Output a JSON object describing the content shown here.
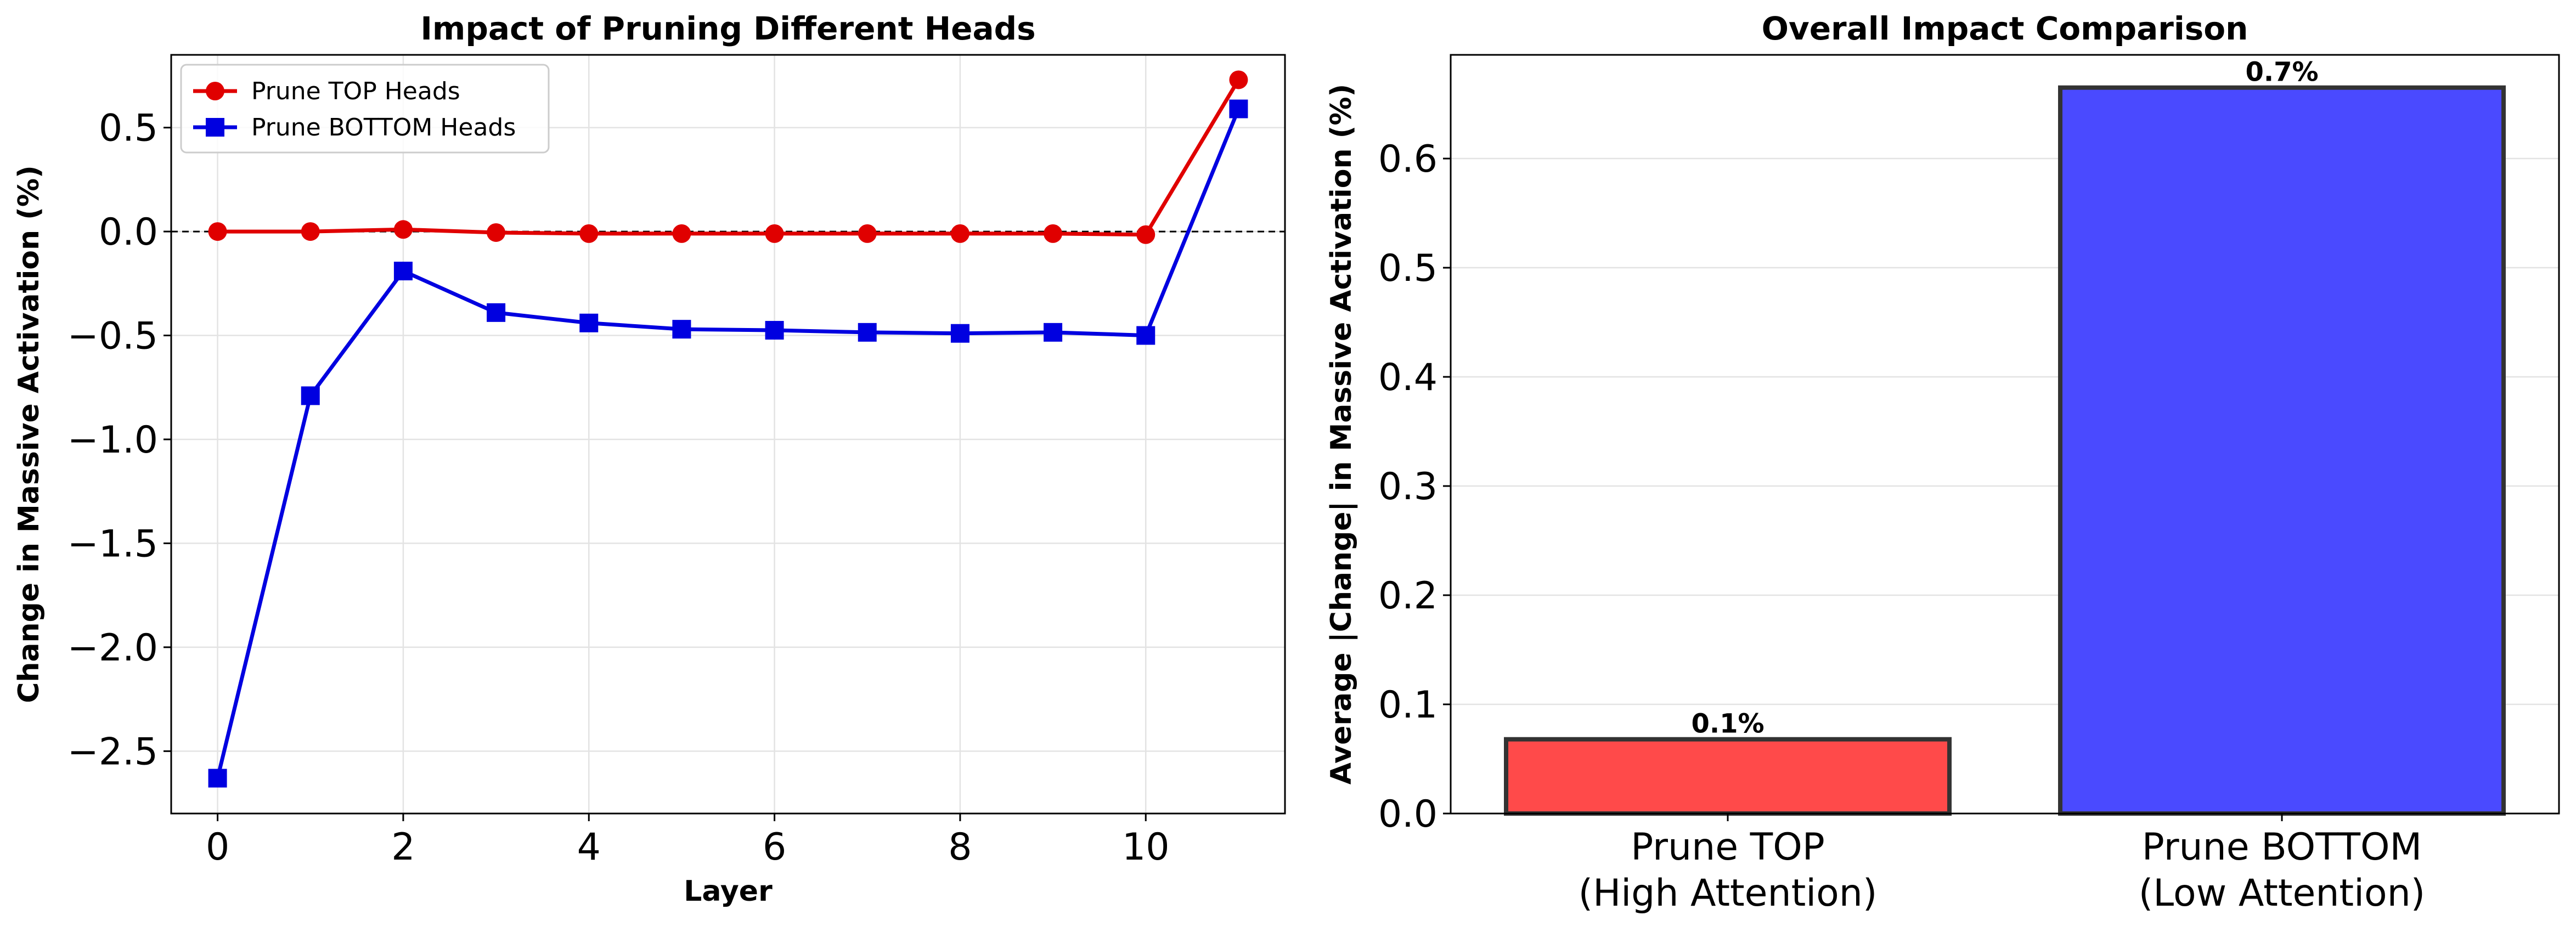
{
  "chart_data": [
    {
      "type": "line",
      "title": "Impact of Pruning Different Heads",
      "xlabel": "Layer",
      "ylabel": "Change in Massive Activation (%)",
      "xlim": [
        -0.5,
        11.5
      ],
      "ylim": [
        -2.8,
        0.85
      ],
      "xticks": [
        0,
        2,
        4,
        6,
        8,
        10
      ],
      "yticks": [
        0.5,
        0.0,
        -0.5,
        -1.0,
        -1.5,
        -2.0,
        -2.5
      ],
      "ytick_labels": [
        "0.5",
        "0.0",
        "−0.5",
        "−1.0",
        "−1.5",
        "−2.0",
        "−2.5"
      ],
      "reference_line_y": 0,
      "grid": true,
      "legend_position": "top-left",
      "x": [
        0,
        1,
        2,
        3,
        4,
        5,
        6,
        7,
        8,
        9,
        10,
        11
      ],
      "series": [
        {
          "name": "Prune TOP Heads",
          "color": "#e00000",
          "marker": "circle",
          "values": [
            0.0,
            0.0,
            0.01,
            -0.005,
            -0.01,
            -0.01,
            -0.01,
            -0.01,
            -0.01,
            -0.01,
            -0.015,
            0.73
          ]
        },
        {
          "name": "Prune BOTTOM Heads",
          "color": "#0000e0",
          "marker": "square",
          "values": [
            -2.63,
            -0.79,
            -0.19,
            -0.39,
            -0.44,
            -0.47,
            -0.475,
            -0.485,
            -0.49,
            -0.485,
            -0.5,
            0.59
          ]
        }
      ]
    },
    {
      "type": "bar",
      "title": "Overall Impact Comparison",
      "xlabel": "",
      "ylabel": "Average |Change| in Massive Activation (%)",
      "ylim": [
        0,
        0.695
      ],
      "yticks": [
        0.0,
        0.1,
        0.2,
        0.3,
        0.4,
        0.5,
        0.6
      ],
      "ytick_labels": [
        "0.0",
        "0.1",
        "0.2",
        "0.3",
        "0.4",
        "0.5",
        "0.6"
      ],
      "grid": true,
      "categories": [
        [
          "Prune TOP",
          "(High Attention)"
        ],
        [
          "Prune BOTTOM",
          "(Low Attention)"
        ]
      ],
      "values": [
        0.068,
        0.665
      ],
      "bar_labels": [
        "0.1%",
        "0.7%"
      ],
      "colors": [
        "#ff4a4a",
        "#4a4aff"
      ]
    }
  ]
}
